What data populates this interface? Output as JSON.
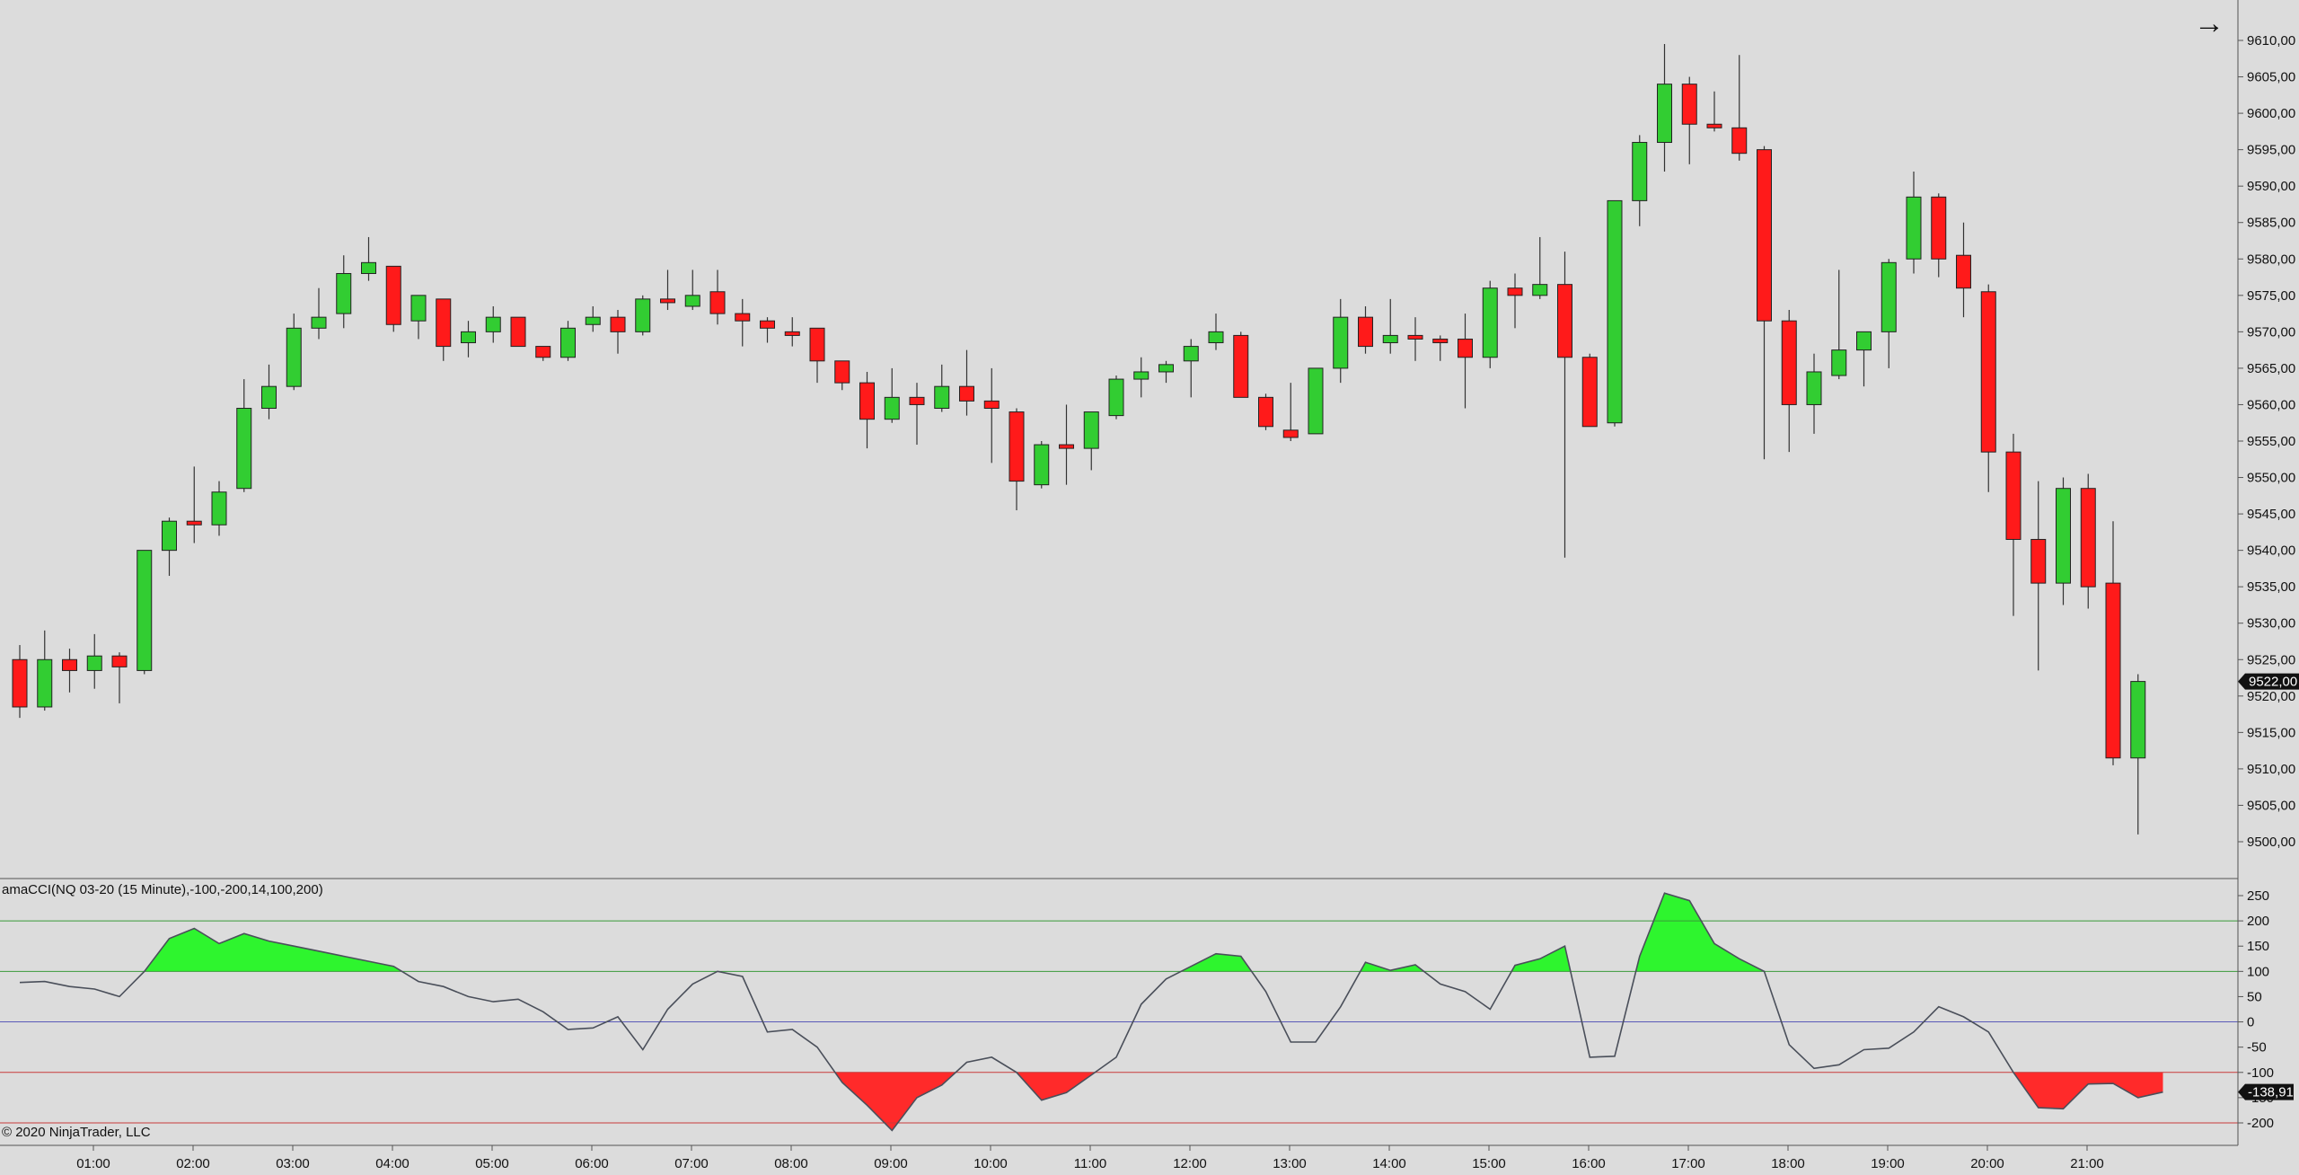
{
  "nav": {
    "arrow_icon": "right-arrow-icon",
    "arrow_glyph": "→"
  },
  "indicator_label": "amaCCI(NQ 03-20 (15 Minute),-100,-200,14,100,200)",
  "copyright": "© 2020 NinjaTrader, LLC",
  "colors": {
    "background": "#dcdcdc",
    "up_candle": "#32cd32",
    "down_candle": "#ff1a1a",
    "wick": "#333333",
    "cci_line": "#4a4f5a",
    "cci_pos_fill": "#2ef52e",
    "cci_neg_fill": "#ff2a2a",
    "level_100": "#3a9a3a",
    "level_0": "#5a5ab8",
    "level_neg100": "#c83a3a"
  },
  "chart_data": [
    {
      "type": "candlestick",
      "instrument": "NQ 03-20 (15 Minute)",
      "ylim": [
        9495,
        9612
      ],
      "y_ticks": [
        "9500,00",
        "9505,00",
        "9510,00",
        "9515,00",
        "9520,00",
        "9525,00",
        "9530,00",
        "9535,00",
        "9540,00",
        "9545,00",
        "9550,00",
        "9555,00",
        "9560,00",
        "9565,00",
        "9570,00",
        "9575,00",
        "9580,00",
        "9585,00",
        "9590,00",
        "9595,00",
        "9600,00",
        "9605,00",
        "9610,00"
      ],
      "x_ticks": [
        "01:00",
        "02:00",
        "03:00",
        "04:00",
        "05:00",
        "06:00",
        "07:00",
        "08:00",
        "09:00",
        "10:00",
        "11:00",
        "12:00",
        "13:00",
        "14:00",
        "15:00",
        "16:00",
        "17:00",
        "18:00",
        "19:00",
        "20:00",
        "21:00"
      ],
      "last_price_label": "9522,00",
      "last_price": 9522,
      "candles": [
        {
          "o": 9525,
          "h": 9527,
          "l": 9517,
          "c": 9518.5
        },
        {
          "o": 9518.5,
          "h": 9529,
          "l": 9518,
          "c": 9525
        },
        {
          "o": 9525,
          "h": 9526.5,
          "l": 9520.5,
          "c": 9523.5
        },
        {
          "o": 9523.5,
          "h": 9528.5,
          "l": 9521,
          "c": 9525.5
        },
        {
          "o": 9525.5,
          "h": 9526,
          "l": 9519,
          "c": 9524
        },
        {
          "o": 9523.5,
          "h": 9540,
          "l": 9523,
          "c": 9540
        },
        {
          "o": 9540,
          "h": 9544.5,
          "l": 9536.5,
          "c": 9544
        },
        {
          "o": 9544,
          "h": 9551.5,
          "l": 9541,
          "c": 9543.5
        },
        {
          "o": 9543.5,
          "h": 9549.5,
          "l": 9542,
          "c": 9548
        },
        {
          "o": 9548.5,
          "h": 9563.5,
          "l": 9548,
          "c": 9559.5
        },
        {
          "o": 9559.5,
          "h": 9565.5,
          "l": 9558,
          "c": 9562.5
        },
        {
          "o": 9562.5,
          "h": 9572.5,
          "l": 9562,
          "c": 9570.5
        },
        {
          "o": 9570.5,
          "h": 9576,
          "l": 9569,
          "c": 9572
        },
        {
          "o": 9572.5,
          "h": 9580.5,
          "l": 9570.5,
          "c": 9578
        },
        {
          "o": 9578,
          "h": 9583,
          "l": 9577,
          "c": 9579.5
        },
        {
          "o": 9579,
          "h": 9579,
          "l": 9570,
          "c": 9571
        },
        {
          "o": 9571.5,
          "h": 9575,
          "l": 9569,
          "c": 9575
        },
        {
          "o": 9574.5,
          "h": 9574.5,
          "l": 9566,
          "c": 9568
        },
        {
          "o": 9568.5,
          "h": 9571.5,
          "l": 9566.5,
          "c": 9570
        },
        {
          "o": 9570,
          "h": 9573.5,
          "l": 9568.5,
          "c": 9572
        },
        {
          "o": 9572,
          "h": 9572,
          "l": 9568,
          "c": 9568
        },
        {
          "o": 9568,
          "h": 9568,
          "l": 9566,
          "c": 9566.5
        },
        {
          "o": 9566.5,
          "h": 9571.5,
          "l": 9566,
          "c": 9570.5
        },
        {
          "o": 9571,
          "h": 9573.5,
          "l": 9570,
          "c": 9572
        },
        {
          "o": 9572,
          "h": 9573,
          "l": 9567,
          "c": 9570
        },
        {
          "o": 9570,
          "h": 9575,
          "l": 9569.5,
          "c": 9574.5
        },
        {
          "o": 9574.5,
          "h": 9578.5,
          "l": 9573,
          "c": 9574
        },
        {
          "o": 9573.5,
          "h": 9578.5,
          "l": 9573,
          "c": 9575
        },
        {
          "o": 9575.5,
          "h": 9578.5,
          "l": 9571,
          "c": 9572.5
        },
        {
          "o": 9572.5,
          "h": 9574.5,
          "l": 9568,
          "c": 9571.5
        },
        {
          "o": 9571.5,
          "h": 9572,
          "l": 9568.5,
          "c": 9570.5
        },
        {
          "o": 9570,
          "h": 9572,
          "l": 9568,
          "c": 9569.5
        },
        {
          "o": 9570.5,
          "h": 9570.5,
          "l": 9563,
          "c": 9566
        },
        {
          "o": 9566,
          "h": 9566,
          "l": 9562,
          "c": 9563
        },
        {
          "o": 9563,
          "h": 9564.5,
          "l": 9554,
          "c": 9558
        },
        {
          "o": 9558,
          "h": 9565,
          "l": 9557.5,
          "c": 9561
        },
        {
          "o": 9561,
          "h": 9563,
          "l": 9554.5,
          "c": 9560
        },
        {
          "o": 9559.5,
          "h": 9565.5,
          "l": 9559,
          "c": 9562.5
        },
        {
          "o": 9562.5,
          "h": 9567.5,
          "l": 9558.5,
          "c": 9560.5
        },
        {
          "o": 9560.5,
          "h": 9565,
          "l": 9552,
          "c": 9559.5
        },
        {
          "o": 9559,
          "h": 9559.5,
          "l": 9545.5,
          "c": 9549.5
        },
        {
          "o": 9549,
          "h": 9555,
          "l": 9548.5,
          "c": 9554.5
        },
        {
          "o": 9554.5,
          "h": 9560,
          "l": 9549,
          "c": 9554
        },
        {
          "o": 9554,
          "h": 9559,
          "l": 9551,
          "c": 9559
        },
        {
          "o": 9558.5,
          "h": 9564,
          "l": 9558,
          "c": 9563.5
        },
        {
          "o": 9563.5,
          "h": 9566.5,
          "l": 9561,
          "c": 9564.5
        },
        {
          "o": 9564.5,
          "h": 9566,
          "l": 9563,
          "c": 9565.5
        },
        {
          "o": 9566,
          "h": 9569,
          "l": 9561,
          "c": 9568
        },
        {
          "o": 9568.5,
          "h": 9572.5,
          "l": 9567.5,
          "c": 9570
        },
        {
          "o": 9569.5,
          "h": 9570,
          "l": 9561,
          "c": 9561
        },
        {
          "o": 9561,
          "h": 9561.5,
          "l": 9556.5,
          "c": 9557
        },
        {
          "o": 9556.5,
          "h": 9563,
          "l": 9555,
          "c": 9555.5
        },
        {
          "o": 9556,
          "h": 9565,
          "l": 9556,
          "c": 9565
        },
        {
          "o": 9565,
          "h": 9574.5,
          "l": 9563,
          "c": 9572
        },
        {
          "o": 9572,
          "h": 9573.5,
          "l": 9567,
          "c": 9568
        },
        {
          "o": 9568.5,
          "h": 9574.5,
          "l": 9567,
          "c": 9569.5
        },
        {
          "o": 9569.5,
          "h": 9572,
          "l": 9566,
          "c": 9569
        },
        {
          "o": 9569,
          "h": 9569.5,
          "l": 9566,
          "c": 9568.5
        },
        {
          "o": 9569,
          "h": 9572.5,
          "l": 9559.5,
          "c": 9566.5
        },
        {
          "o": 9566.5,
          "h": 9577,
          "l": 9565,
          "c": 9576
        },
        {
          "o": 9576,
          "h": 9578,
          "l": 9570.5,
          "c": 9575
        },
        {
          "o": 9575,
          "h": 9583,
          "l": 9574.5,
          "c": 9576.5
        },
        {
          "o": 9576.5,
          "h": 9581,
          "l": 9539,
          "c": 9566.5
        },
        {
          "o": 9566.5,
          "h": 9567,
          "l": 9557,
          "c": 9557
        },
        {
          "o": 9557.5,
          "h": 9588,
          "l": 9557,
          "c": 9588
        },
        {
          "o": 9588,
          "h": 9597,
          "l": 9584.5,
          "c": 9596
        },
        {
          "o": 9596,
          "h": 9609.5,
          "l": 9592,
          "c": 9604
        },
        {
          "o": 9604,
          "h": 9605,
          "l": 9593,
          "c": 9598.5
        },
        {
          "o": 9598.5,
          "h": 9603,
          "l": 9597.5,
          "c": 9598
        },
        {
          "o": 9598,
          "h": 9608,
          "l": 9593.5,
          "c": 9594.5
        },
        {
          "o": 9595,
          "h": 9595.5,
          "l": 9552.5,
          "c": 9571.5
        },
        {
          "o": 9571.5,
          "h": 9573,
          "l": 9553.5,
          "c": 9560
        },
        {
          "o": 9560,
          "h": 9567,
          "l": 9556,
          "c": 9564.5
        },
        {
          "o": 9564,
          "h": 9578.5,
          "l": 9563.5,
          "c": 9567.5
        },
        {
          "o": 9567.5,
          "h": 9570,
          "l": 9562.5,
          "c": 9570
        },
        {
          "o": 9570,
          "h": 9580,
          "l": 9565,
          "c": 9579.5
        },
        {
          "o": 9580,
          "h": 9592,
          "l": 9578,
          "c": 9588.5
        },
        {
          "o": 9588.5,
          "h": 9589,
          "l": 9577.5,
          "c": 9580
        },
        {
          "o": 9580.5,
          "h": 9585,
          "l": 9572,
          "c": 9576
        },
        {
          "o": 9575.5,
          "h": 9576.5,
          "l": 9548,
          "c": 9553.5
        },
        {
          "o": 9553.5,
          "h": 9556,
          "l": 9531,
          "c": 9541.5
        },
        {
          "o": 9541.5,
          "h": 9549.5,
          "l": 9523.5,
          "c": 9535.5
        },
        {
          "o": 9535.5,
          "h": 9550,
          "l": 9532.5,
          "c": 9548.5
        },
        {
          "o": 9548.5,
          "h": 9550.5,
          "l": 9532,
          "c": 9535
        },
        {
          "o": 9535.5,
          "h": 9544,
          "l": 9510.5,
          "c": 9511.5
        },
        {
          "o": 9511.5,
          "h": 9523,
          "l": 9501,
          "c": 9522
        }
      ]
    },
    {
      "type": "line",
      "name": "amaCCI(NQ 03-20 (15 Minute),-100,-200,14,100,200)",
      "ylim": [
        -235,
        262
      ],
      "y_ticks": [
        "-200",
        "-150",
        "-100",
        "-50",
        "0",
        "50",
        "100",
        "150",
        "200",
        "250"
      ],
      "levels": [
        200,
        100,
        0,
        -100,
        -200
      ],
      "last_value_label": "-138,91",
      "last_value": -138.91,
      "values": [
        78,
        80,
        70,
        65,
        50,
        100,
        165,
        185,
        155,
        175,
        160,
        150,
        140,
        130,
        120,
        110,
        80,
        70,
        50,
        40,
        45,
        20,
        -15,
        -12,
        10,
        -55,
        25,
        75,
        100,
        90,
        -20,
        -15,
        -50,
        -120,
        -165,
        -215,
        -150,
        -125,
        -80,
        -70,
        -100,
        -155,
        -140,
        -105,
        -70,
        35,
        85,
        110,
        135,
        130,
        60,
        -40,
        -40,
        30,
        118,
        102,
        113,
        75,
        60,
        25,
        112,
        125,
        150,
        -70,
        -68,
        130,
        255,
        240,
        155,
        125,
        100,
        -45,
        -92,
        -85,
        -55,
        -52,
        -20,
        30,
        10,
        -20,
        -100,
        -170,
        -172,
        -123,
        -122,
        -150,
        -139
      ]
    }
  ]
}
